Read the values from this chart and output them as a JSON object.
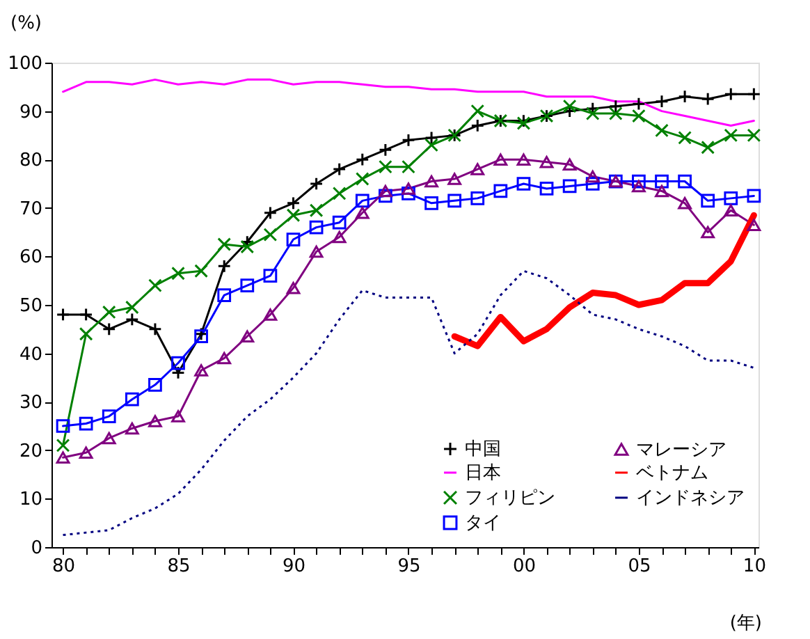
{
  "chart_data": {
    "type": "line",
    "ylabel": "(%)",
    "xlabel": "(年)",
    "x": [
      1980,
      1981,
      1982,
      1983,
      1984,
      1985,
      1986,
      1987,
      1988,
      1989,
      1990,
      1991,
      1992,
      1993,
      1994,
      1995,
      1996,
      1997,
      1998,
      1999,
      2000,
      2001,
      2002,
      2003,
      2004,
      2005,
      2006,
      2007,
      2008,
      2009,
      2010
    ],
    "xlim": [
      1979.5,
      2010.2
    ],
    "xticks": [
      {
        "value": 1980,
        "label": "80"
      },
      {
        "value": 1981,
        "label": null
      },
      {
        "value": 1982,
        "label": null
      },
      {
        "value": 1983,
        "label": null
      },
      {
        "value": 1984,
        "label": null
      },
      {
        "value": 1985,
        "label": "85"
      },
      {
        "value": 1986,
        "label": null
      },
      {
        "value": 1987,
        "label": null
      },
      {
        "value": 1988,
        "label": null
      },
      {
        "value": 1989,
        "label": null
      },
      {
        "value": 1990,
        "label": "90"
      },
      {
        "value": 1991,
        "label": null
      },
      {
        "value": 1992,
        "label": null
      },
      {
        "value": 1993,
        "label": null
      },
      {
        "value": 1994,
        "label": null
      },
      {
        "value": 1995,
        "label": "95"
      },
      {
        "value": 1996,
        "label": null
      },
      {
        "value": 1997,
        "label": null
      },
      {
        "value": 1998,
        "label": null
      },
      {
        "value": 1999,
        "label": null
      },
      {
        "value": 2000,
        "label": "00"
      },
      {
        "value": 2001,
        "label": null
      },
      {
        "value": 2002,
        "label": null
      },
      {
        "value": 2003,
        "label": null
      },
      {
        "value": 2004,
        "label": null
      },
      {
        "value": 2005,
        "label": "05"
      },
      {
        "value": 2006,
        "label": null
      },
      {
        "value": 2007,
        "label": null
      },
      {
        "value": 2008,
        "label": null
      },
      {
        "value": 2009,
        "label": null
      },
      {
        "value": 2010,
        "label": "10"
      }
    ],
    "ylim": [
      0,
      100
    ],
    "yticks": [
      0,
      10,
      20,
      30,
      40,
      50,
      60,
      70,
      80,
      90,
      100
    ],
    "grid": false,
    "legend": "bottom right",
    "series": [
      {
        "name": "中国",
        "color": "#000000",
        "marker": "plus",
        "line_style": "solid",
        "values": [
          48,
          48,
          45,
          47,
          45,
          36,
          44,
          58,
          63,
          69,
          71,
          75,
          78,
          80,
          82,
          84,
          84.5,
          85,
          87,
          88,
          88,
          89,
          90,
          90.5,
          91,
          91.5,
          92,
          93,
          92.5,
          93.5,
          93.5
        ]
      },
      {
        "name": "日本",
        "color": "#ff00ff",
        "marker": "none",
        "line_style": "solid",
        "values": [
          94,
          96,
          96,
          95.5,
          96.5,
          95.5,
          96,
          95.5,
          96.5,
          96.5,
          95.5,
          96,
          96,
          95.5,
          95,
          95,
          94.5,
          94.5,
          94,
          94,
          94,
          93,
          93,
          93,
          92,
          92,
          90,
          89,
          88,
          87,
          88
        ]
      },
      {
        "name": "フィリピン",
        "color": "#008000",
        "marker": "cross",
        "line_style": "solid",
        "values": [
          21,
          44,
          48.5,
          49.5,
          54,
          56.5,
          57,
          62.5,
          62,
          64.5,
          68.5,
          69.5,
          73,
          76,
          78.5,
          78.5,
          83,
          85,
          90,
          88,
          87.5,
          89,
          91,
          89.5,
          89.5,
          89,
          86,
          84.5,
          82.5,
          85,
          85
        ]
      },
      {
        "name": "タイ",
        "color": "#0000ff",
        "marker": "square",
        "line_style": "solid",
        "values": [
          25,
          25.5,
          27,
          30.5,
          33.5,
          38,
          43.5,
          52,
          54,
          56,
          63.5,
          66,
          67,
          71.5,
          72.5,
          73,
          71,
          71.5,
          72,
          73.5,
          75,
          74,
          74.5,
          75,
          75.5,
          75.5,
          75.5,
          75.5,
          71.5,
          72,
          72.5
        ]
      },
      {
        "name": "マレーシア",
        "color": "#800080",
        "marker": "triangle",
        "line_style": "solid",
        "values": [
          18.5,
          19.5,
          22.5,
          24.5,
          26,
          27,
          36.5,
          39,
          43.5,
          48,
          53.5,
          61,
          64,
          69,
          73.5,
          74,
          75.5,
          76,
          78,
          80,
          80,
          79.5,
          79,
          76.5,
          75.5,
          74.5,
          73.5,
          71,
          65,
          69.5,
          66.5
        ]
      },
      {
        "name": "ベトナム",
        "color": "#ff0000",
        "marker": "none",
        "line_style": "solid",
        "values": [
          null,
          null,
          null,
          null,
          null,
          null,
          null,
          null,
          null,
          null,
          null,
          null,
          null,
          null,
          null,
          null,
          null,
          43.5,
          41.5,
          47.5,
          42.5,
          45,
          49.5,
          52.5,
          52,
          50,
          51,
          54.5,
          54.5,
          59,
          68.5
        ]
      },
      {
        "name": "インドネシア",
        "color": "#000080",
        "marker": "none",
        "line_style": "dotted",
        "values": [
          2.5,
          3,
          3.5,
          6,
          8,
          11,
          16,
          22,
          27,
          30.5,
          35,
          40,
          47,
          53,
          51.5,
          51.5,
          51.5,
          40,
          44,
          52,
          57,
          55.5,
          52,
          48,
          47,
          45,
          43.5,
          41.5,
          38.5,
          38.5,
          37
        ]
      }
    ]
  }
}
